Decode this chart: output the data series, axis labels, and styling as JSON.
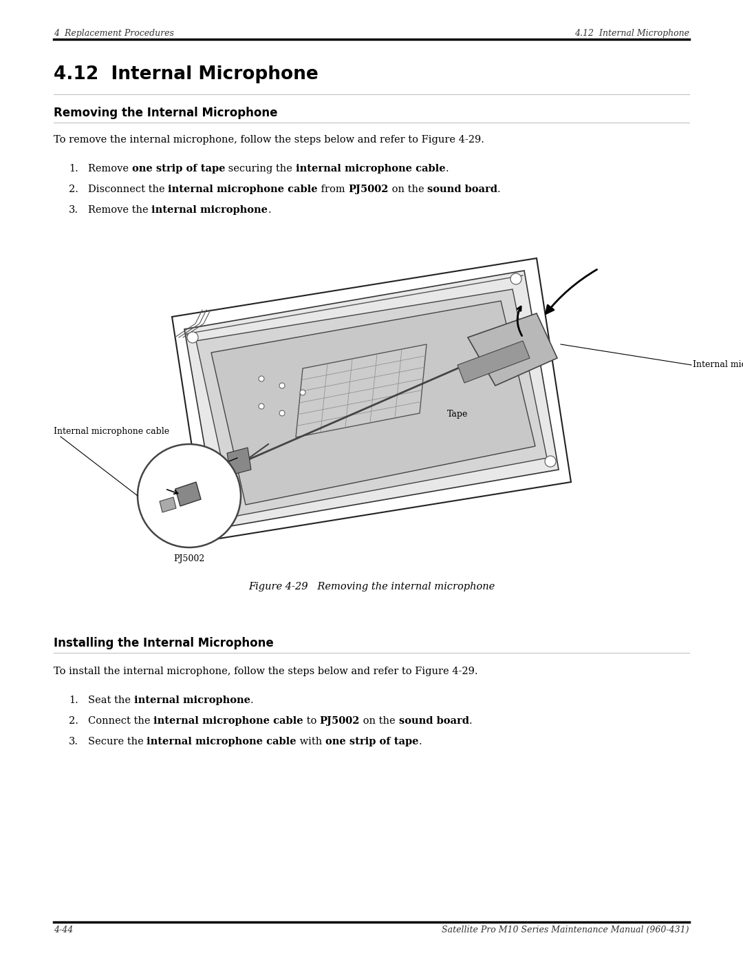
{
  "page_width": 10.8,
  "page_height": 13.97,
  "dpi": 100,
  "bg_color": "#ffffff",
  "header_left": "4  Replacement Procedures",
  "header_right": "4.12  Internal Microphone",
  "footer_left": "4-44",
  "footer_right": "Satellite Pro M10 Series Maintenance Manual (960-431)",
  "section_title": "4.12  Internal Microphone",
  "subsection1": "Removing the Internal Microphone",
  "intro1": "To remove the internal microphone, follow the steps below and refer to Figure 4-29.",
  "steps_remove": [
    "Remove {one strip of tape} securing the {internal microphone cable}.",
    "Disconnect the {internal microphone cable} from {PJ5002} on the {sound board}.",
    "Remove the {internal microphone}."
  ],
  "figure_caption": "Figure 4-29   Removing the internal microphone",
  "subsection2": "Installing the Internal Microphone",
  "intro2": "To install the internal microphone, follow the steps below and refer to Figure 4-29.",
  "steps_install": [
    "Seat the {internal microphone}.",
    "Connect the {internal microphone cable} to {PJ5002} on the {sound board}.",
    "Secure the {internal microphone cable} with {one strip of tape}."
  ],
  "label_mic_cable": "Internal microphone cable",
  "label_mic": "Internal microphone",
  "label_tape": "Tape",
  "label_pj5002": "PJ5002"
}
